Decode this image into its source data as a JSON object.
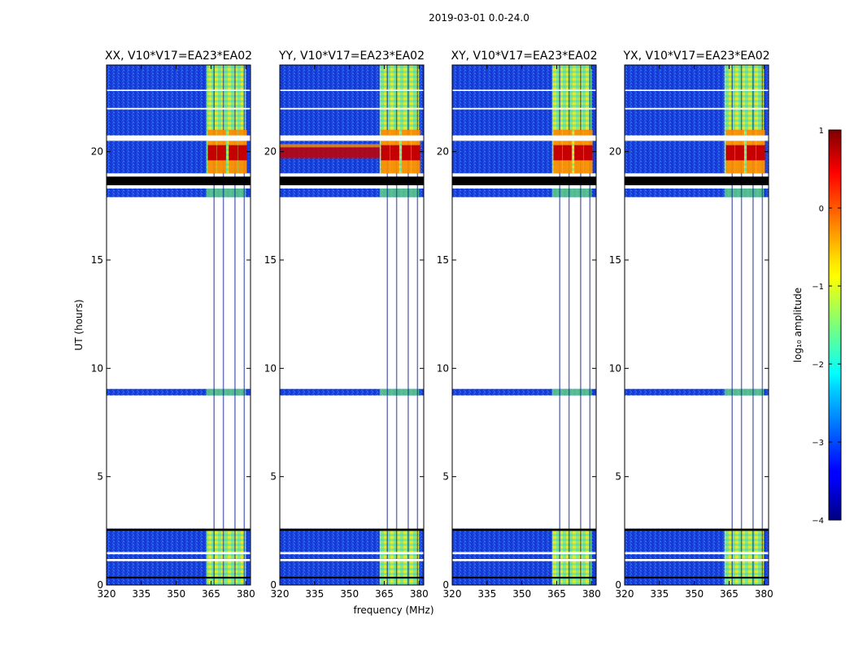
{
  "chart_data": {
    "type": "heatmap",
    "suptitle": "2019-03-01 0.0-24.0",
    "xlabel": "frequency (MHz)",
    "ylabel": "UT (hours)",
    "xlim": [
      320,
      382
    ],
    "ylim": [
      0,
      24
    ],
    "xticks": [
      320,
      335,
      350,
      365,
      380
    ],
    "yticks": [
      0,
      5,
      10,
      15,
      20
    ],
    "panels": [
      {
        "title": "XX, V10*V17=EA23*EA02",
        "strong_band_hours": [
          19.0,
          21.0
        ],
        "rfi_peak_hours": [
          19.6,
          20.3
        ],
        "broadband_line": false
      },
      {
        "title": "YY, V10*V17=EA23*EA02",
        "strong_band_hours": [
          19.0,
          21.0
        ],
        "rfi_peak_hours": [
          19.6,
          20.3
        ],
        "broadband_line": true
      },
      {
        "title": "XY, V10*V17=EA23*EA02",
        "strong_band_hours": [
          19.0,
          21.0
        ],
        "rfi_peak_hours": [
          19.6,
          20.3
        ],
        "broadband_line": false
      },
      {
        "title": "YX, V10*V17=EA23*EA02",
        "strong_band_hours": [
          19.0,
          21.0
        ],
        "rfi_peak_hours": [
          19.6,
          20.3
        ],
        "broadband_line": false
      }
    ],
    "data_blocks_hours": [
      [
        0.0,
        2.6
      ],
      [
        8.75,
        9.05
      ],
      [
        17.9,
        18.3
      ],
      [
        19.0,
        24.0
      ]
    ],
    "flagged_black_bands_hours": [
      [
        18.45,
        18.85
      ],
      [
        2.5,
        2.6
      ],
      [
        0.3,
        0.38
      ]
    ],
    "rfi_channel_range_mhz": [
      363,
      380
    ],
    "rfi_channel_centers_mhz": [
      365,
      369,
      374,
      378
    ],
    "colorbar": {
      "label": "log₁₀ amplitude",
      "range": [
        -4,
        1
      ],
      "ticks": [
        1,
        0,
        -1,
        -2,
        -3,
        -4
      ],
      "tick_labels": [
        "1",
        "0",
        "−1",
        "−2",
        "−3",
        "−4"
      ],
      "colormap": "jet"
    }
  },
  "colors": {
    "background_low": "#1a3fdc",
    "background_mid": "#2a66f0",
    "rfi_green": "#6df070",
    "rfi_yellow": "#ecf22a",
    "rfi_orange": "#ff8a00",
    "rfi_red": "#c40000",
    "flag_black": "#000000"
  }
}
